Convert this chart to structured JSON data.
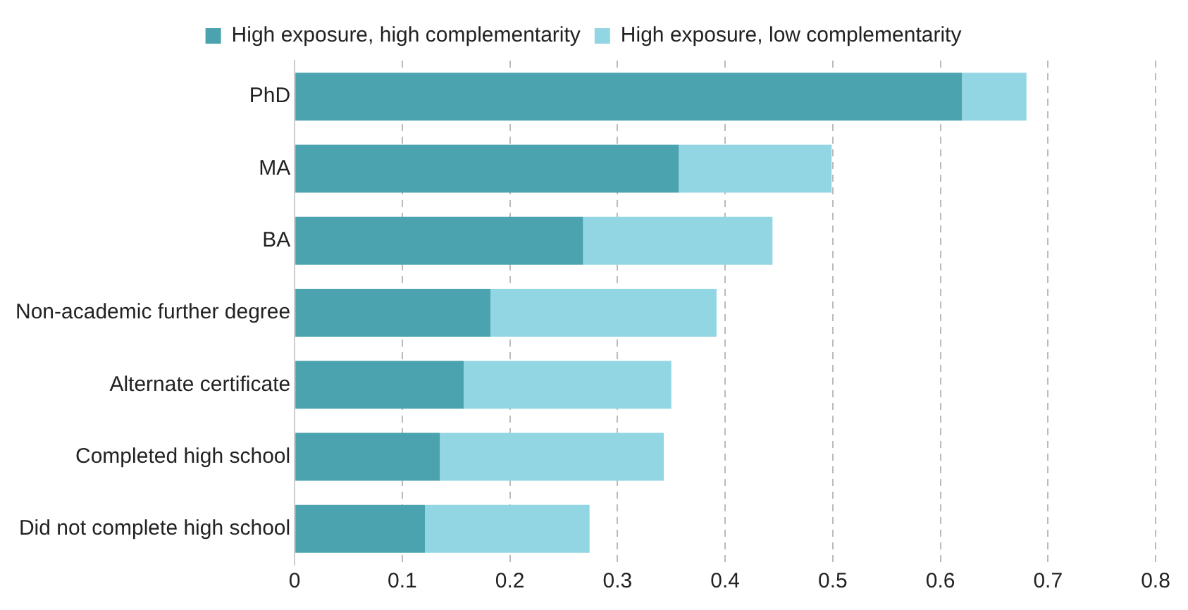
{
  "chart_data": {
    "type": "bar",
    "orientation": "horizontal",
    "stacked": true,
    "categories": [
      "PhD",
      "MA",
      "BA",
      "Non-academic further degree",
      "Alternate certificate",
      "Completed high school",
      "Did not complete high school"
    ],
    "series": [
      {
        "name": "High exposure, high complementarity",
        "color": "#4aa3ae",
        "values": [
          0.62,
          0.357,
          0.268,
          0.182,
          0.157,
          0.135,
          0.121
        ]
      },
      {
        "name": "High exposure, low complementarity",
        "color": "#93d6e3",
        "values": [
          0.06,
          0.142,
          0.176,
          0.21,
          0.193,
          0.208,
          0.153
        ]
      }
    ],
    "xlim": [
      0,
      0.8
    ],
    "xticks": [
      0,
      0.1,
      0.2,
      0.3,
      0.4,
      0.5,
      0.6,
      0.7,
      0.8
    ],
    "grid": "x",
    "legend": "top"
  }
}
